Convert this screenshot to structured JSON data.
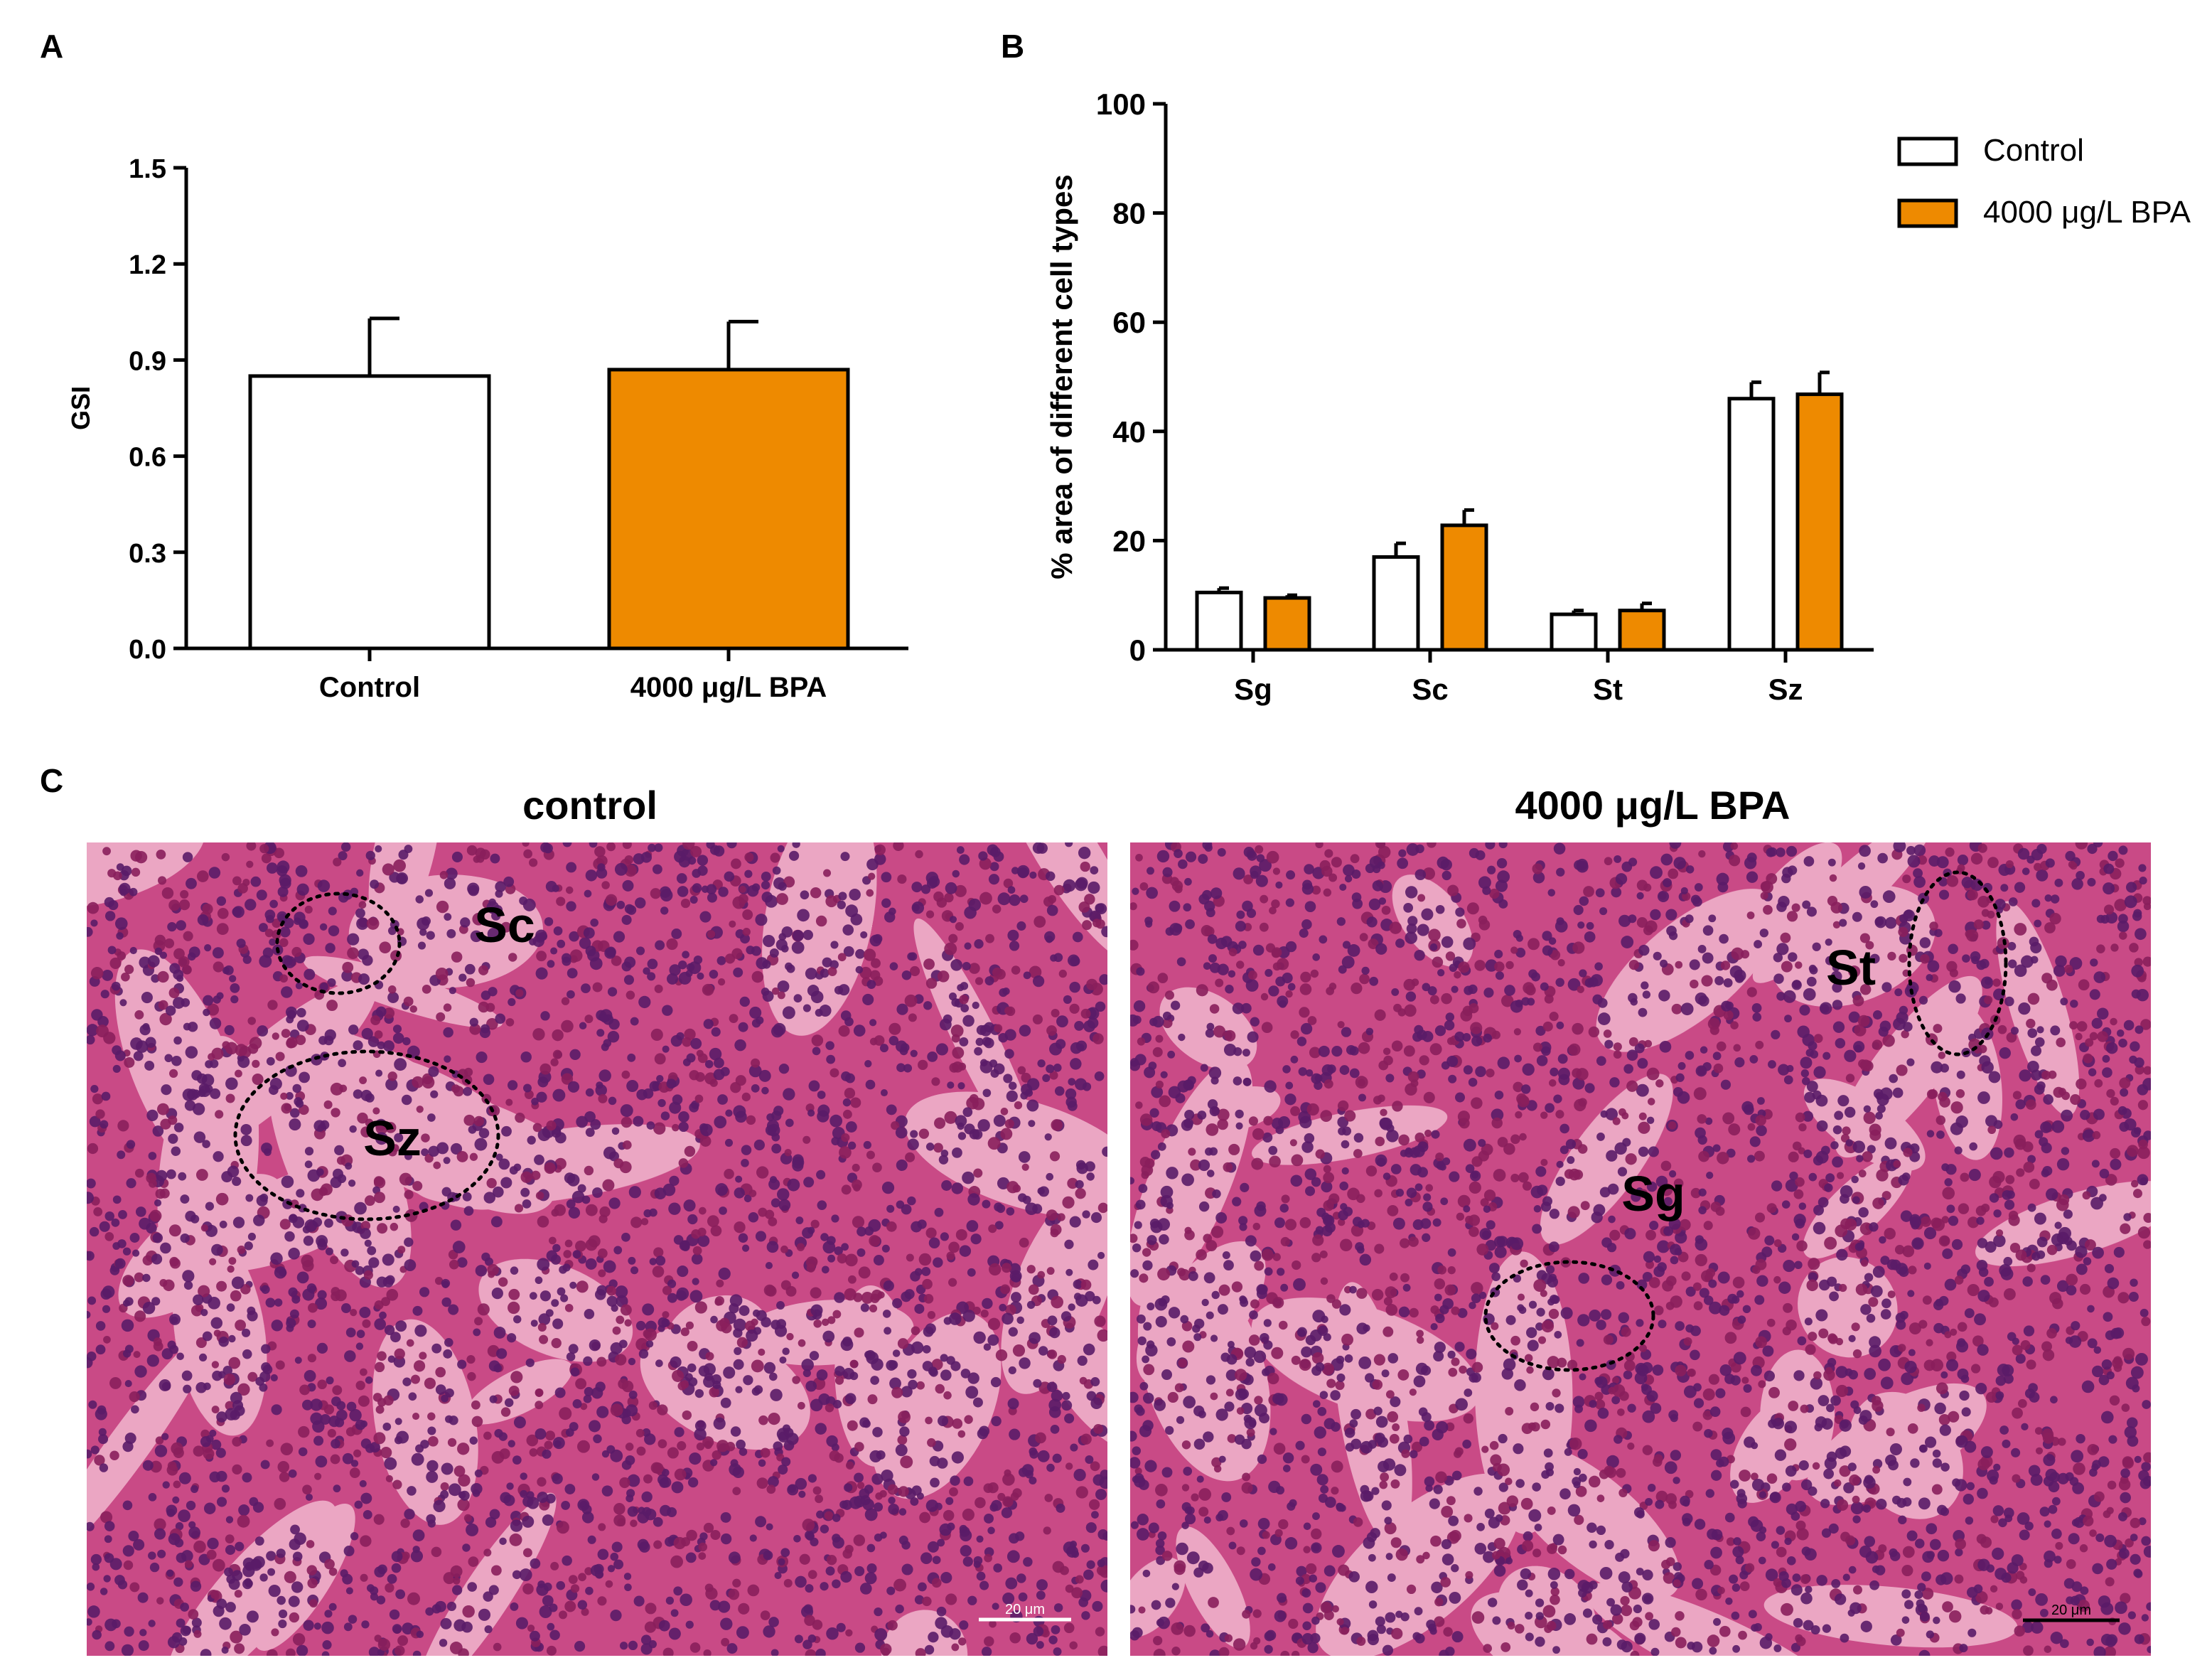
{
  "panels": {
    "a": "A",
    "b": "B",
    "c": "C"
  },
  "colors": {
    "control": "#ffffff",
    "bpa": "#EE8A00",
    "stroke": "#000000",
    "tissue_base": "#c94a86",
    "tissue_light": "#f1b8cf",
    "nucleus": "#5a1c68",
    "nucleus_alt": "#8a1f5c"
  },
  "chart_data": [
    {
      "type": "bar",
      "categories": [
        "Control",
        "4000 μg/L BPA"
      ],
      "values": [
        0.85,
        0.87
      ],
      "errors": [
        0.18,
        0.15
      ],
      "ylabel": "GSI",
      "xlabel": "",
      "ylim": [
        0,
        1.5
      ],
      "yticks": [
        "0.0",
        "0.3",
        "0.6",
        "0.9",
        "1.2",
        "1.5"
      ]
    },
    {
      "type": "bar",
      "categories": [
        "Sg",
        "Sc",
        "St",
        "Sz"
      ],
      "series": [
        {
          "name": "Control",
          "values": [
            10.5,
            17,
            6.5,
            46
          ],
          "errors": [
            0.8,
            2.5,
            0.7,
            3
          ]
        },
        {
          "name": "4000 μg/L BPA",
          "values": [
            9.5,
            22.8,
            7.2,
            46.8
          ],
          "errors": [
            0.5,
            2.8,
            1.3,
            4
          ]
        }
      ],
      "ylabel": "% area of different cell types",
      "xlabel": "",
      "ylim": [
        0,
        100
      ],
      "yticks": [
        "0",
        "20",
        "40",
        "60",
        "80",
        "100"
      ],
      "legend": "top-right"
    }
  ],
  "micrographs": {
    "left": {
      "title": "control",
      "labels": [
        "Sc",
        "Sz"
      ],
      "scale_bar": "20 μm"
    },
    "right": {
      "title": "4000 μg/L BPA",
      "labels": [
        "St",
        "Sg"
      ],
      "scale_bar": "20 μm"
    }
  }
}
